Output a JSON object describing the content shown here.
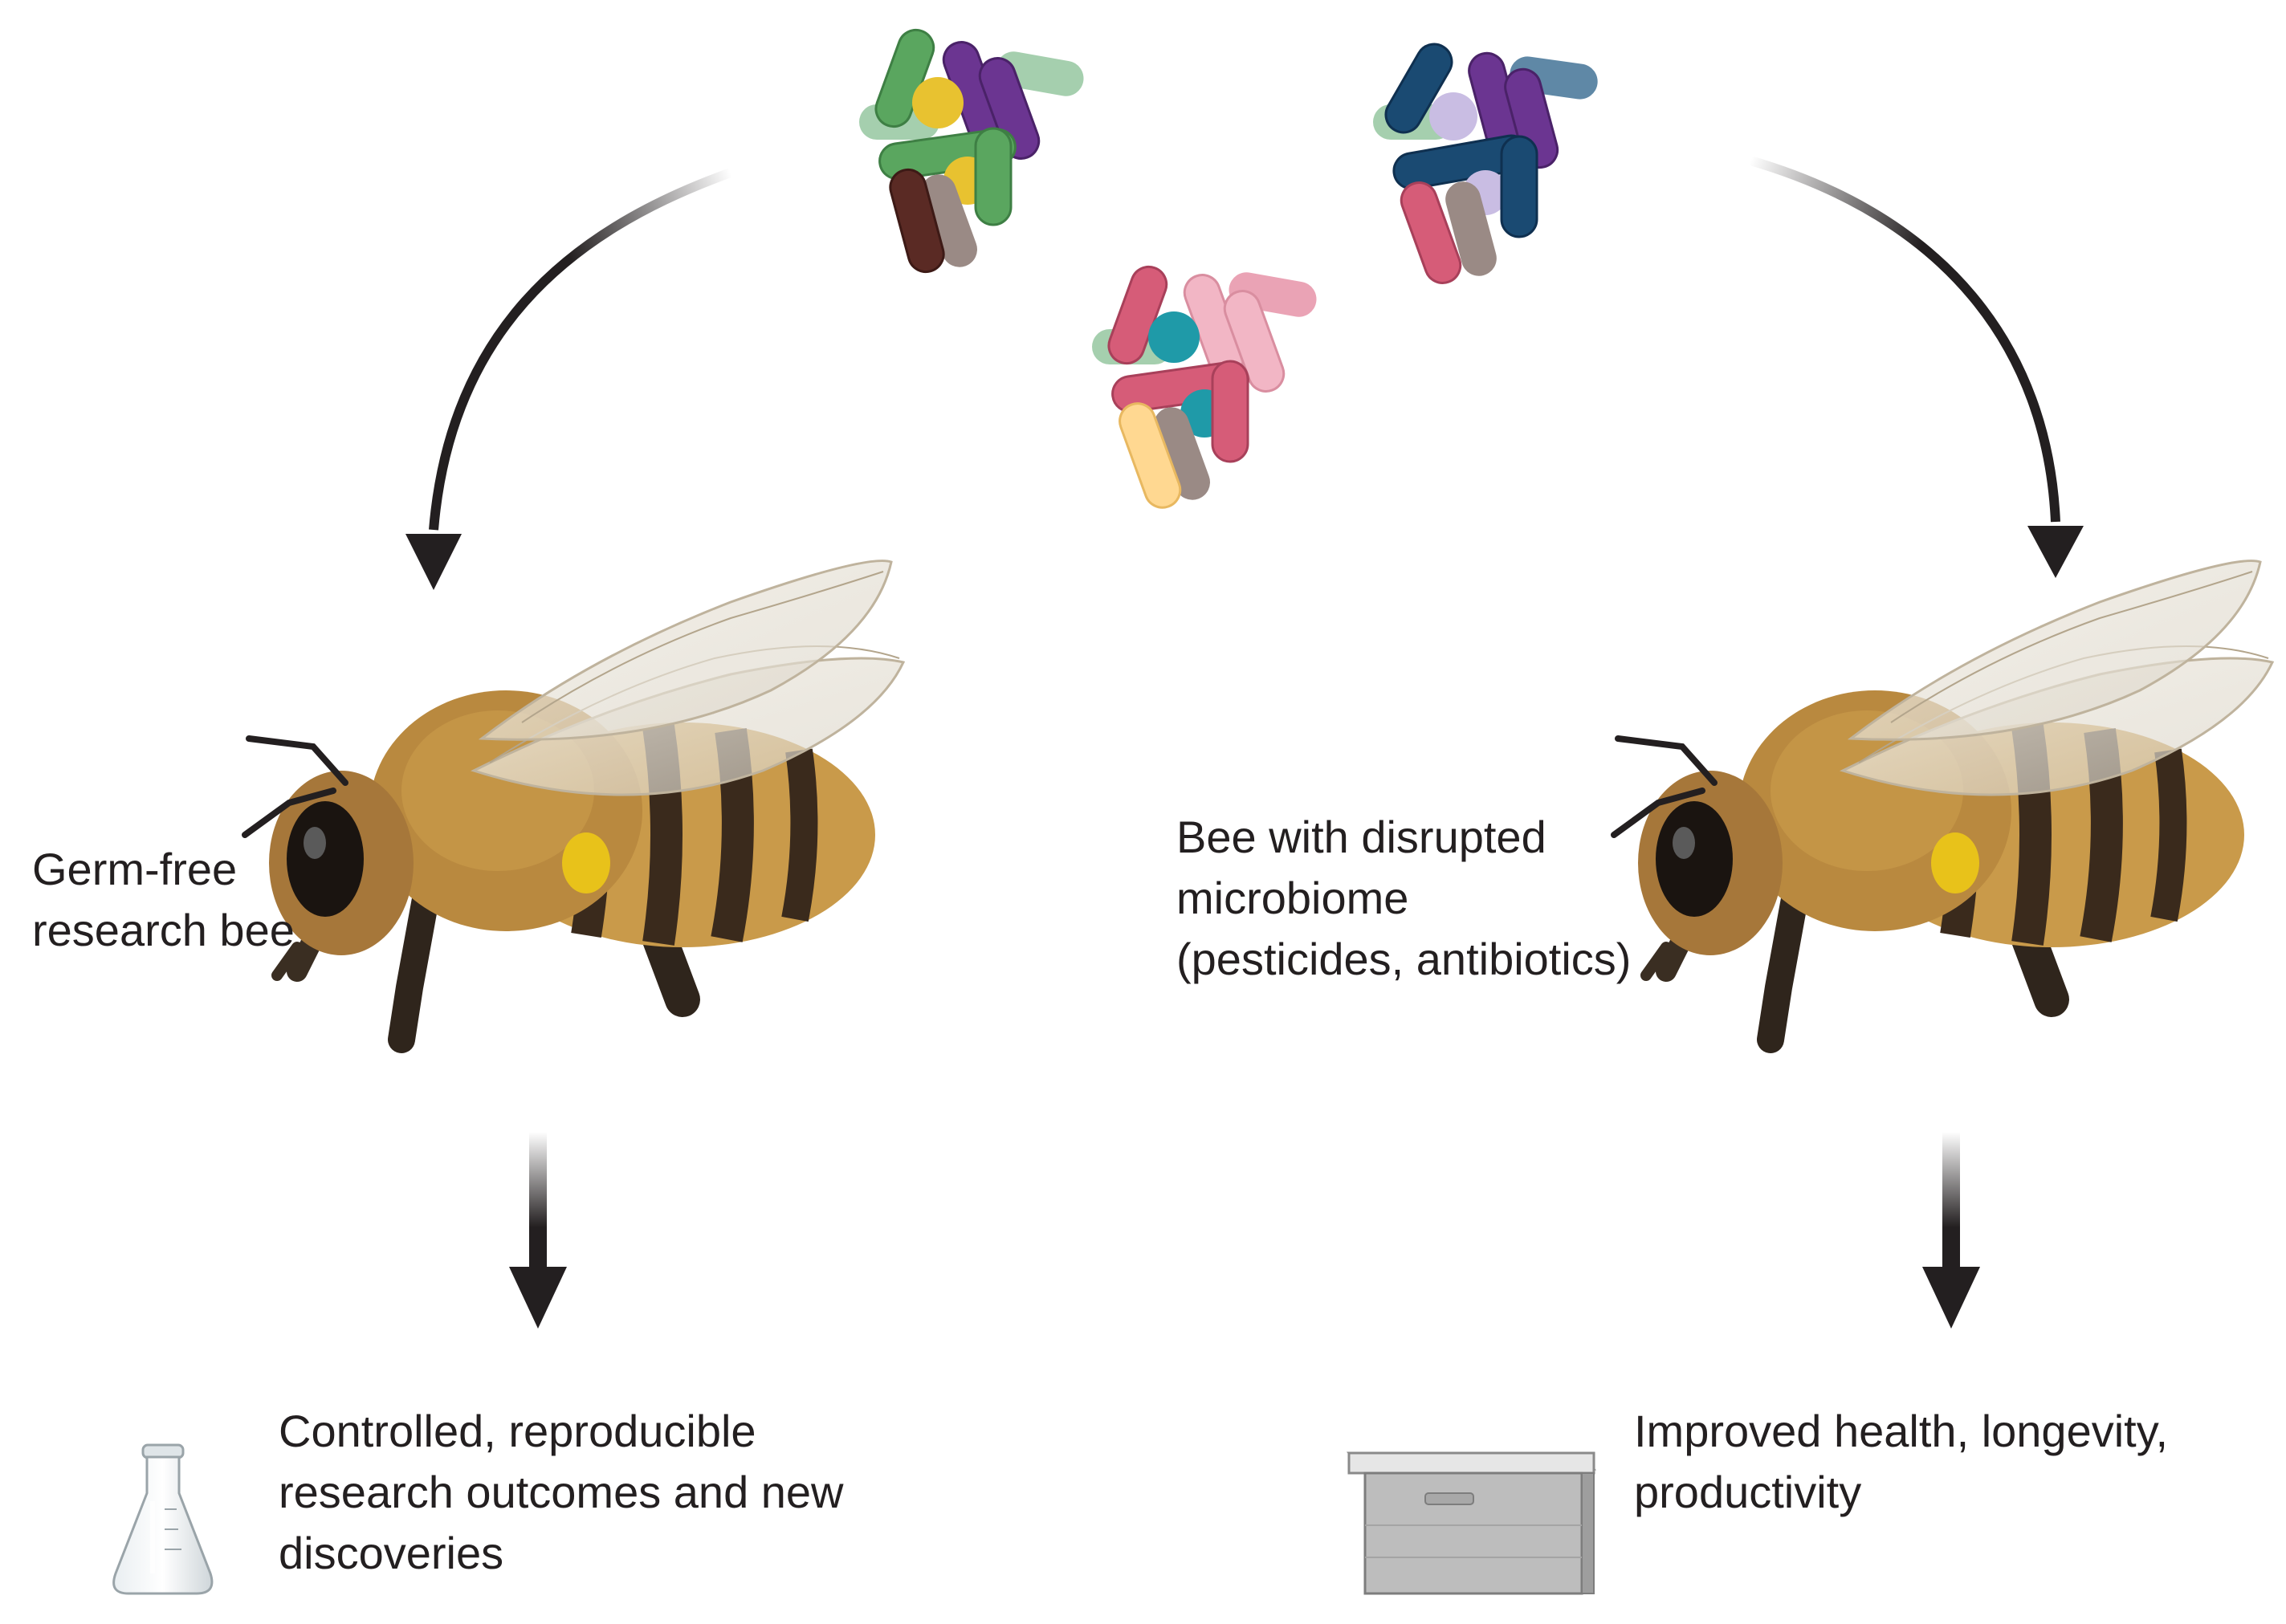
{
  "left_branch": {
    "bee_label_lines": [
      "Germ-free",
      "research bee"
    ],
    "outcome_lines": [
      "Controlled, reproducible",
      "research outcomes and new",
      "discoveries"
    ],
    "outcome_icon": "flask-icon"
  },
  "right_branch": {
    "bee_label_lines": [
      "Bee with disrupted",
      "microbiome",
      "(pesticides, antibiotics)"
    ],
    "outcome_lines": [
      "Improved health, longevity,",
      "productivity"
    ],
    "outcome_icon": "beehive-box-icon"
  },
  "colors": {
    "arrow": "#231f20",
    "text": "#231f20",
    "bee_body": "#c99a4a",
    "bee_stripe": "#3a2a1c",
    "pollen": "#e8c21a"
  }
}
